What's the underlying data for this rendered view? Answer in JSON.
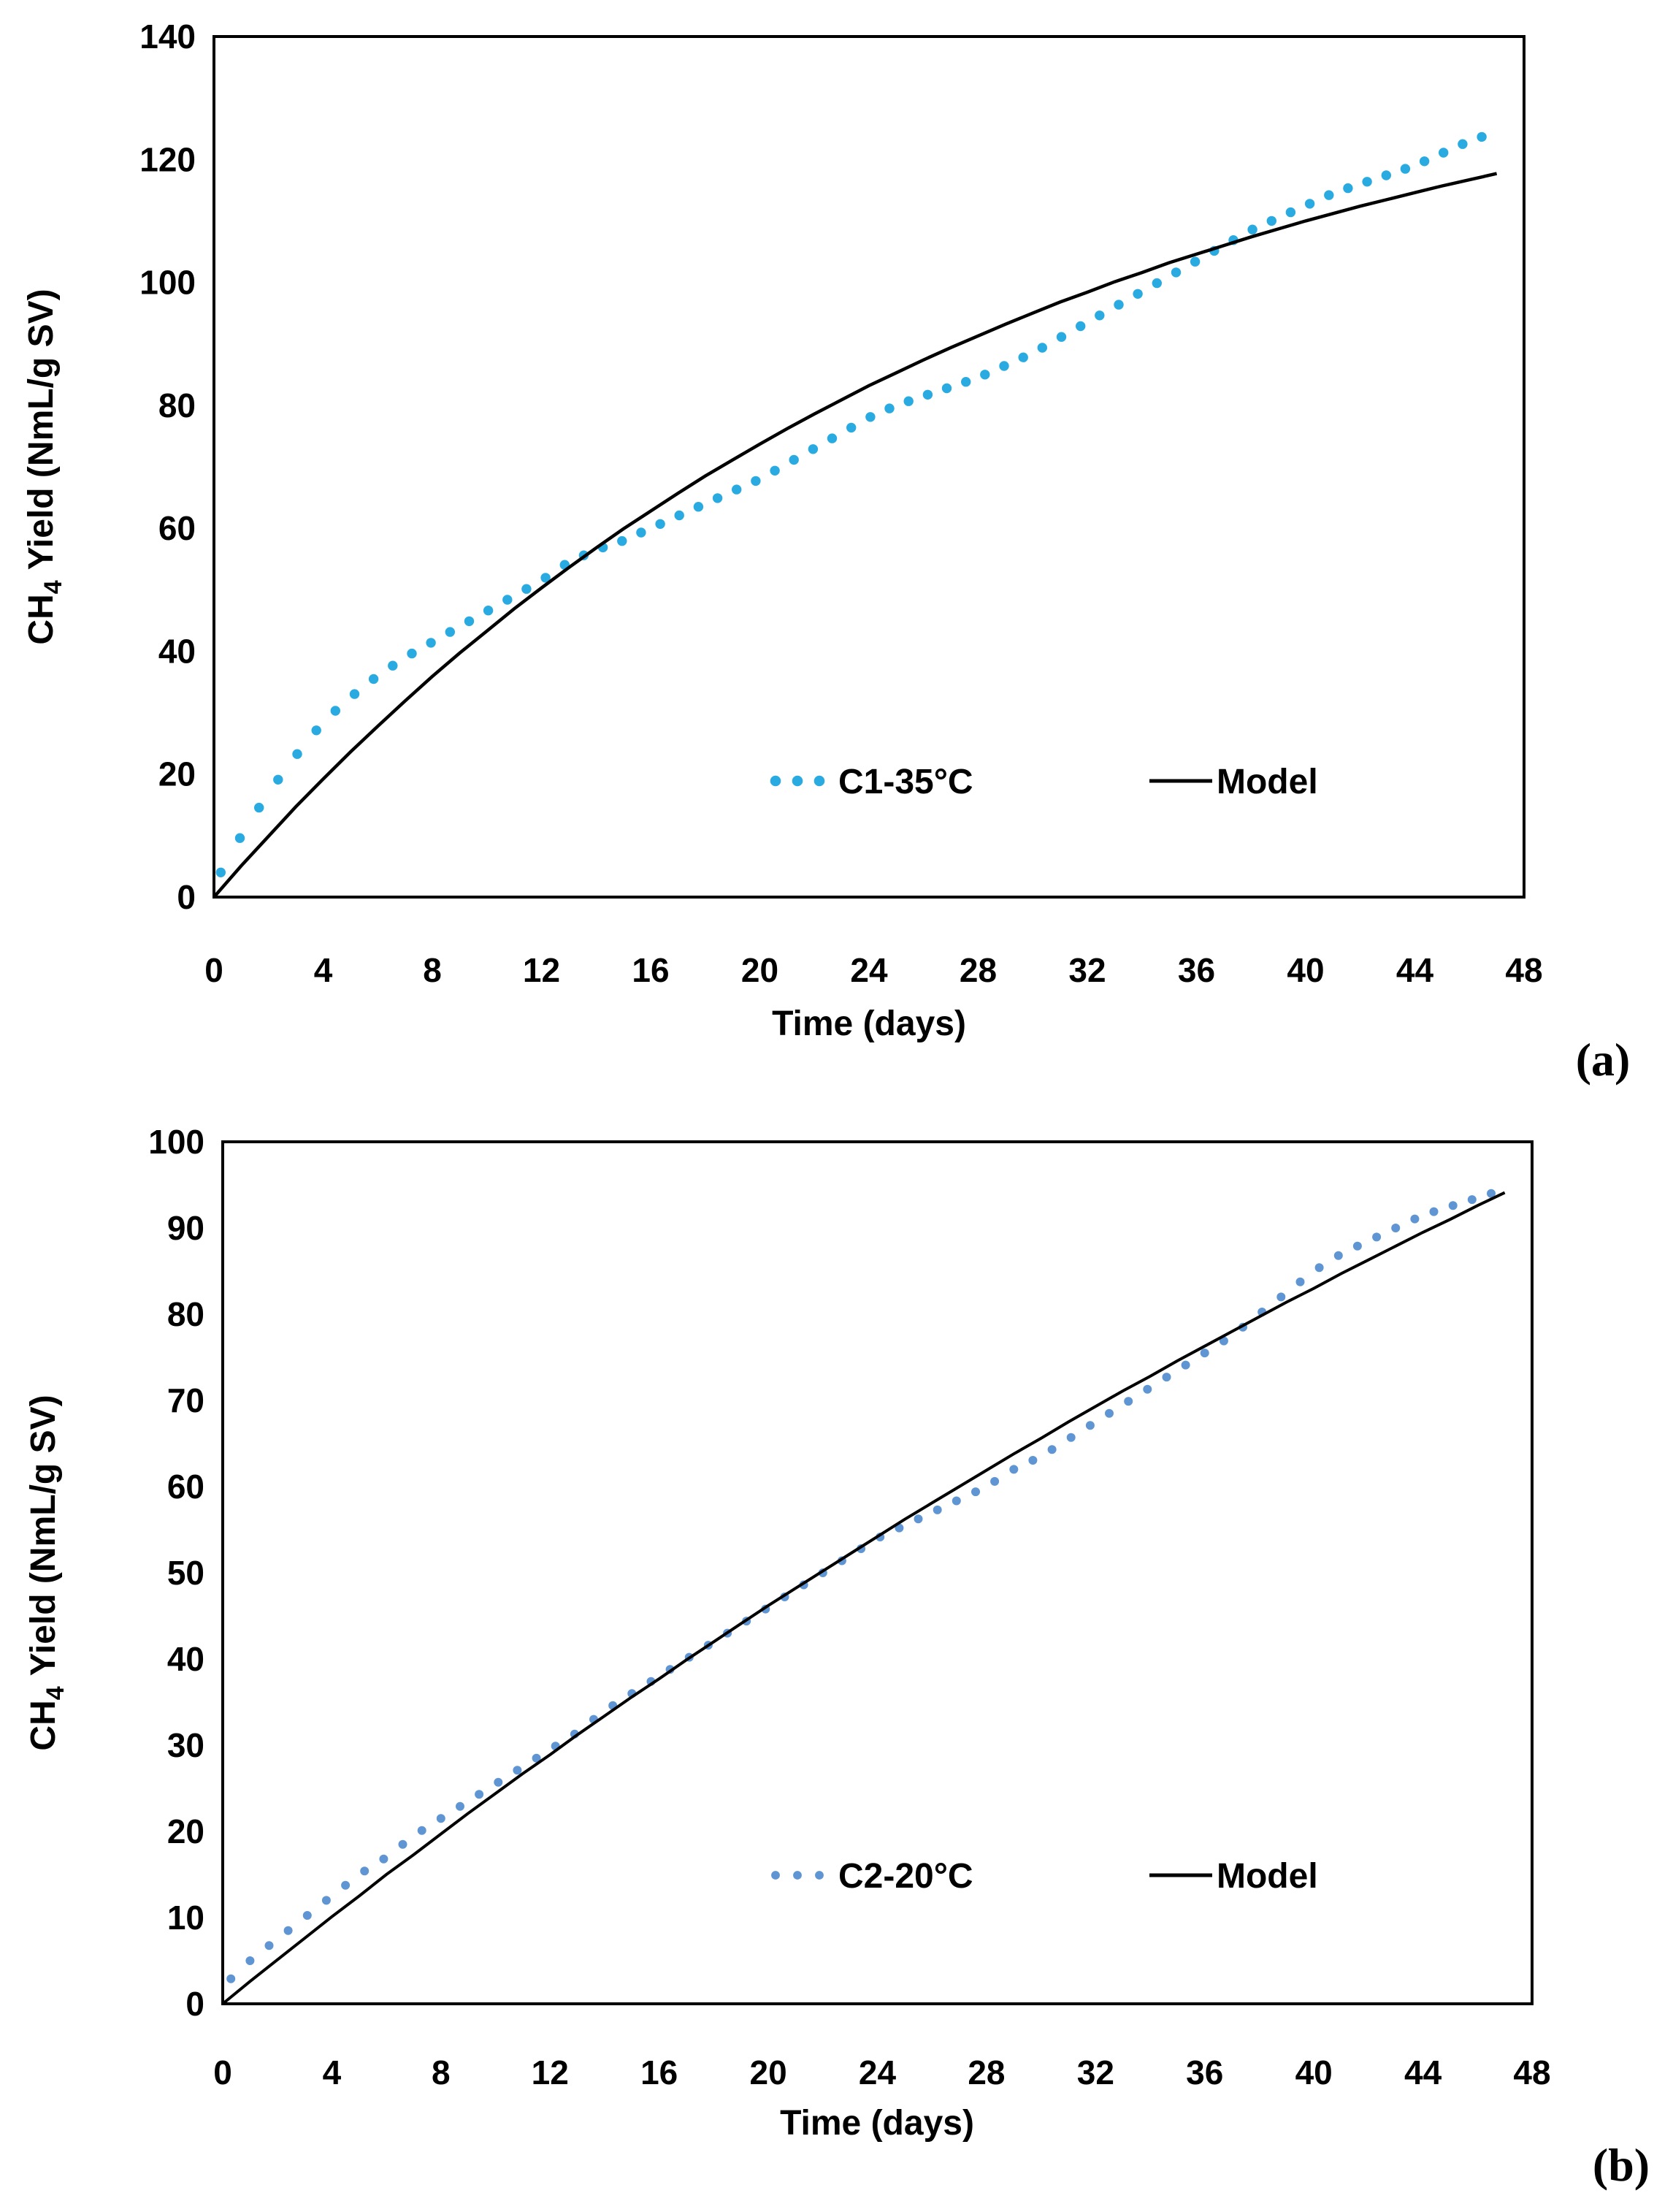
{
  "figure": {
    "panels": [
      {
        "panel_label": "(a)",
        "xlabel": "Time (days)",
        "ylabel_prefix": "CH",
        "ylabel_sub": "4",
        "ylabel_suffix": "Yield (NmL/g SV)",
        "xticks": [
          "0",
          "4",
          "8",
          "12",
          "16",
          "20",
          "24",
          "28",
          "32",
          "36",
          "40",
          "44",
          "48"
        ],
        "yticks": [
          "0",
          "20",
          "40",
          "60",
          "80",
          "100",
          "120",
          "140"
        ],
        "legend": [
          {
            "label": "C1-35°C",
            "marker": "dots",
            "color": "#29ABE2"
          },
          {
            "label": "Model",
            "marker": "line",
            "color": "#000000"
          }
        ]
      },
      {
        "panel_label": "(b)",
        "xlabel": "Time (days)",
        "ylabel_prefix": "CH",
        "ylabel_sub": "4",
        "ylabel_suffix": "Yield (NmL/g SV)",
        "xticks": [
          "0",
          "4",
          "8",
          "12",
          "16",
          "20",
          "24",
          "28",
          "32",
          "36",
          "40",
          "44",
          "48"
        ],
        "yticks": [
          "0",
          "10",
          "20",
          "30",
          "40",
          "50",
          "60",
          "70",
          "80",
          "90",
          "100"
        ],
        "legend": [
          {
            "label": "C2-20°C",
            "marker": "dots",
            "color": "#5E95D2"
          },
          {
            "label": "Model",
            "marker": "line",
            "color": "#000000"
          }
        ]
      }
    ]
  },
  "chart_data": [
    {
      "type": "line",
      "panel": "a",
      "title": "",
      "xlabel": "Time (days)",
      "ylabel": "CH4 Yield (NmL/g SV)",
      "xlim": [
        0,
        48
      ],
      "ylim": [
        0,
        140
      ],
      "xticks": [
        0,
        4,
        8,
        12,
        16,
        20,
        24,
        28,
        32,
        36,
        40,
        44,
        48
      ],
      "yticks": [
        0,
        20,
        40,
        60,
        80,
        100,
        120,
        140
      ],
      "grid": false,
      "legend_position": "inside-lower-right",
      "series": [
        {
          "name": "C1-35°C",
          "style": "dotted",
          "color": "#29ABE2",
          "x": [
            0,
            1,
            2,
            3,
            4,
            5,
            6,
            7,
            8,
            9,
            10,
            11,
            12,
            13,
            14,
            15,
            16,
            17,
            18,
            19,
            20,
            21,
            22,
            23,
            24,
            25,
            26,
            27,
            28,
            29,
            30,
            31,
            32,
            33,
            34,
            35,
            36,
            37,
            38,
            39,
            40,
            41,
            42,
            43,
            44,
            45,
            46,
            47
          ],
          "y": [
            2,
            10,
            17,
            23,
            28.5,
            32.5,
            36,
            39,
            41.5,
            44,
            46.5,
            49,
            51.5,
            54.5,
            56.5,
            58,
            60,
            62,
            64,
            66,
            68,
            70.5,
            73,
            75.5,
            78,
            80,
            81.5,
            83,
            84.5,
            86.5,
            88.5,
            91,
            93.5,
            96,
            98.5,
            101,
            103.5,
            106,
            108.5,
            110.5,
            112.5,
            114.5,
            116,
            117.5,
            119,
            121,
            123,
            124.5
          ]
        },
        {
          "name": "Model",
          "style": "solid",
          "color": "#000000",
          "x": [
            0,
            1,
            2,
            3,
            4,
            5,
            6,
            7,
            8,
            9,
            10,
            11,
            12,
            13,
            14,
            15,
            16,
            17,
            18,
            19,
            20,
            21,
            22,
            23,
            24,
            25,
            26,
            27,
            28,
            29,
            30,
            31,
            32,
            33,
            34,
            35,
            36,
            37,
            38,
            39,
            40,
            41,
            42,
            43,
            44,
            45,
            46,
            47
          ],
          "y": [
            0,
            5.1,
            9.9,
            14.7,
            19.2,
            23.6,
            27.8,
            31.9,
            35.9,
            39.7,
            43.3,
            46.9,
            50.3,
            53.6,
            56.8,
            59.9,
            62.8,
            65.7,
            68.5,
            71.1,
            73.7,
            76.2,
            78.6,
            80.9,
            83.2,
            85.3,
            87.4,
            89.4,
            91.3,
            93.2,
            95,
            96.8,
            98.4,
            100.1,
            101.6,
            103.2,
            104.6,
            106,
            107.4,
            108.7,
            110,
            111.2,
            112.4,
            113.5,
            114.6,
            115.7,
            116.7,
            117.7
          ]
        }
      ]
    },
    {
      "type": "line",
      "panel": "b",
      "title": "",
      "xlabel": "Time (days)",
      "ylabel": "CH4 Yield (NmL/g SV)",
      "xlim": [
        0,
        48
      ],
      "ylim": [
        0,
        100
      ],
      "xticks": [
        0,
        4,
        8,
        12,
        16,
        20,
        24,
        28,
        32,
        36,
        40,
        44,
        48
      ],
      "yticks": [
        0,
        10,
        20,
        30,
        40,
        50,
        60,
        70,
        80,
        90,
        100
      ],
      "grid": false,
      "legend_position": "inside-lower-right",
      "series": [
        {
          "name": "C2-20°C",
          "style": "dotted",
          "color": "#5E95D2",
          "x": [
            0,
            1,
            2,
            3,
            4,
            5,
            6,
            7,
            8,
            9,
            10,
            11,
            12,
            13,
            14,
            15,
            16,
            17,
            18,
            19,
            20,
            21,
            22,
            23,
            24,
            25,
            26,
            27,
            28,
            29,
            30,
            31,
            32,
            33,
            34,
            35,
            36,
            37,
            38,
            39,
            40,
            41,
            42,
            43,
            44,
            45,
            46,
            47
          ],
          "y": [
            2,
            5,
            7.5,
            10,
            12.5,
            15,
            17,
            19.5,
            21.5,
            23.5,
            25.5,
            27.5,
            29.5,
            31.5,
            34,
            36,
            38,
            40,
            42,
            44,
            46,
            48,
            50,
            52,
            54,
            55.5,
            57,
            58.5,
            60,
            62,
            63.5,
            65.5,
            67.5,
            69.5,
            71.5,
            73.5,
            75.5,
            77.5,
            80,
            82.5,
            85,
            87,
            88.5,
            90,
            91.5,
            92.5,
            93.5,
            94.5
          ]
        },
        {
          "name": "Model",
          "style": "solid",
          "color": "#000000",
          "x": [
            0,
            1,
            2,
            3,
            4,
            5,
            6,
            7,
            8,
            9,
            10,
            11,
            12,
            13,
            14,
            15,
            16,
            17,
            18,
            19,
            20,
            21,
            22,
            23,
            24,
            25,
            26,
            27,
            28,
            29,
            30,
            31,
            32,
            33,
            34,
            35,
            36,
            37,
            38,
            39,
            40,
            41,
            42,
            43,
            44,
            45,
            46,
            47
          ],
          "y": [
            0,
            2.6,
            5.1,
            7.6,
            10.1,
            12.5,
            15,
            17.3,
            19.7,
            22.1,
            24.4,
            26.7,
            28.9,
            31.2,
            33.4,
            35.6,
            37.7,
            39.9,
            42,
            44.1,
            46.2,
            48.2,
            50.2,
            52.2,
            54.2,
            56.2,
            58.1,
            60,
            61.9,
            63.8,
            65.6,
            67.5,
            69.3,
            71.1,
            72.8,
            74.6,
            76.3,
            78,
            79.7,
            81.4,
            83,
            84.7,
            86.3,
            87.9,
            89.5,
            91,
            92.6,
            94.1
          ]
        }
      ]
    }
  ]
}
